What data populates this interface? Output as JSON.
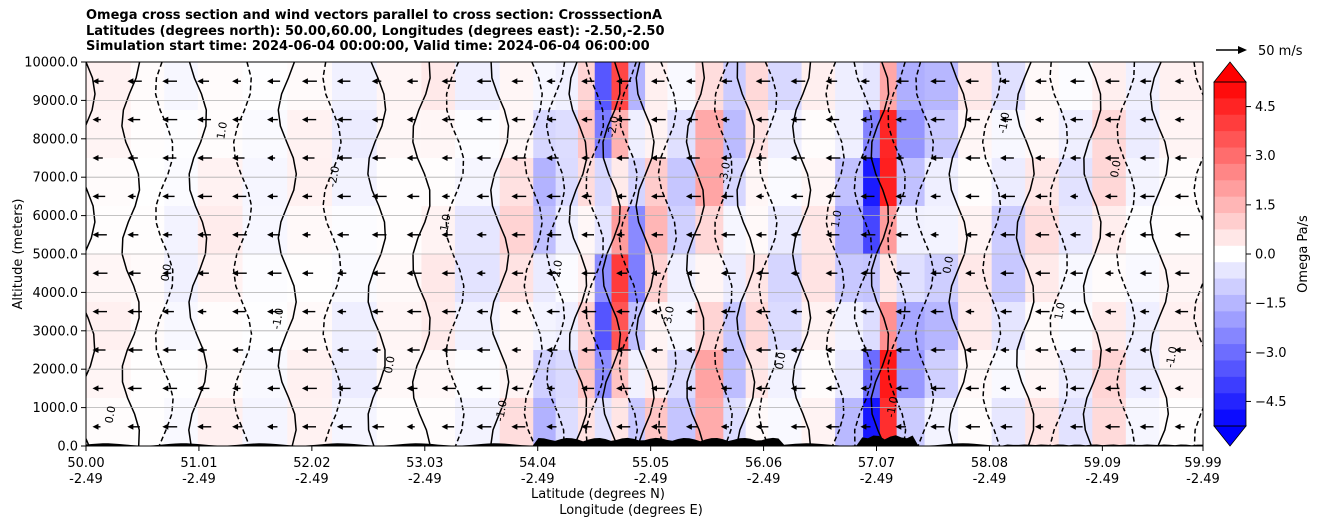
{
  "title": {
    "line1": "Omega cross section and wind vectors parallel to cross section: CrosssectionA",
    "line2": "Latitudes (degrees north): 50.00,60.00, Longitudes (degrees east): -2.50,-2.50",
    "line3": "Simulation start time: 2024-06-04 00:00:00, Valid time: 2024-06-04 06:00:00"
  },
  "chart_data": {
    "type": "heatmap",
    "ylabel": "Altitude (meters)",
    "xlabel_lat": "Latitude (degrees N)",
    "xlabel_lon": "Longitude (degrees E)",
    "ylim": [
      0,
      10000
    ],
    "xlim": [
      50.0,
      59.99
    ],
    "yticks": [
      "0.0",
      "1000.0",
      "2000.0",
      "3000.0",
      "4000.0",
      "5000.0",
      "6000.0",
      "7000.0",
      "8000.0",
      "9000.0",
      "10000.0"
    ],
    "xticks": [
      {
        "lat": "50.00",
        "lon": "-2.49"
      },
      {
        "lat": "51.01",
        "lon": "-2.49"
      },
      {
        "lat": "52.02",
        "lon": "-2.49"
      },
      {
        "lat": "53.03",
        "lon": "-2.49"
      },
      {
        "lat": "54.04",
        "lon": "-2.49"
      },
      {
        "lat": "55.05",
        "lon": "-2.49"
      },
      {
        "lat": "56.06",
        "lon": "-2.49"
      },
      {
        "lat": "57.07",
        "lon": "-2.49"
      },
      {
        "lat": "58.08",
        "lon": "-2.49"
      },
      {
        "lat": "59.09",
        "lon": "-2.49"
      },
      {
        "lat": "59.99",
        "lon": "-2.49"
      }
    ],
    "grid": "horizontal",
    "colorbar": {
      "label": "Omega Pa/s",
      "ticks": [
        "4.5",
        "3.0",
        "1.5",
        "0.0",
        "−1.5",
        "−3.0",
        "−4.5"
      ],
      "range": [
        -5.25,
        5.25
      ],
      "extend": "both"
    },
    "quiver_key": {
      "label": "50 m/s"
    },
    "bands": [
      {
        "lat": 50.0,
        "v": 0.3
      },
      {
        "lat": 50.4,
        "v": 0.1
      },
      {
        "lat": 50.7,
        "v": -0.3
      },
      {
        "lat": 51.0,
        "v": 0.4
      },
      {
        "lat": 51.4,
        "v": -0.2
      },
      {
        "lat": 51.8,
        "v": 0.3
      },
      {
        "lat": 52.2,
        "v": -0.4
      },
      {
        "lat": 52.6,
        "v": 0.2
      },
      {
        "lat": 53.0,
        "v": 0.5
      },
      {
        "lat": 53.3,
        "v": -0.6
      },
      {
        "lat": 53.7,
        "v": 0.9
      },
      {
        "lat": 54.0,
        "v": -1.6
      },
      {
        "lat": 54.2,
        "v": -0.8
      },
      {
        "lat": 54.4,
        "v": 1.2
      },
      {
        "lat": 54.55,
        "v": -3.5
      },
      {
        "lat": 54.7,
        "v": 4.2
      },
      {
        "lat": 54.85,
        "v": -2.8
      },
      {
        "lat": 55.0,
        "v": 1.5
      },
      {
        "lat": 55.2,
        "v": -1.2
      },
      {
        "lat": 55.45,
        "v": 2.0
      },
      {
        "lat": 55.7,
        "v": -1.4
      },
      {
        "lat": 55.9,
        "v": 0.8
      },
      {
        "lat": 56.1,
        "v": -0.9
      },
      {
        "lat": 56.4,
        "v": 0.6
      },
      {
        "lat": 56.7,
        "v": -1.8
      },
      {
        "lat": 56.95,
        "v": -4.8
      },
      {
        "lat": 57.1,
        "v": 5.0
      },
      {
        "lat": 57.25,
        "v": -2.2
      },
      {
        "lat": 57.5,
        "v": -1.5
      },
      {
        "lat": 57.8,
        "v": 0.5
      },
      {
        "lat": 58.1,
        "v": -1.2
      },
      {
        "lat": 58.4,
        "v": 0.7
      },
      {
        "lat": 58.7,
        "v": -0.6
      },
      {
        "lat": 59.0,
        "v": 0.9
      },
      {
        "lat": 59.3,
        "v": -0.4
      },
      {
        "lat": 59.6,
        "v": 0.3
      },
      {
        "lat": 59.99,
        "v": -0.2
      }
    ],
    "contour_labels": [
      "0.0",
      "0.0",
      "1.0",
      "-1.0",
      "-2.0",
      "0.0",
      "1.0",
      "-1.0",
      "2.0",
      "-2.0",
      "3.0",
      "-3.0",
      "0.0",
      "1.0",
      "-1.0",
      "0.0",
      "-1.0",
      "1.0",
      "0.0",
      "-1.0"
    ]
  }
}
